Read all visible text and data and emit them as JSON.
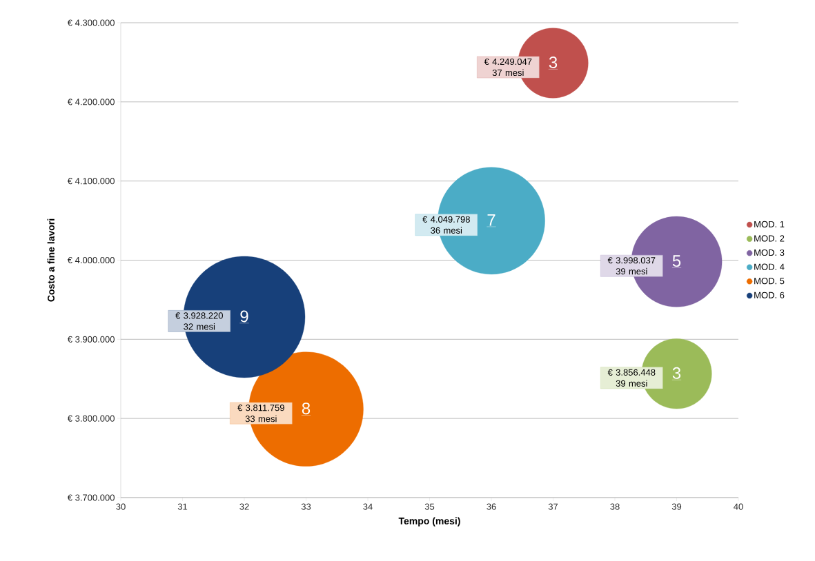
{
  "chart_data": {
    "type": "bubble",
    "xlabel": "Tempo (mesi)",
    "ylabel": "Costo a fine lavori",
    "xlim": [
      30,
      40
    ],
    "xticks": [
      30,
      31,
      32,
      33,
      34,
      35,
      36,
      37,
      38,
      39,
      40
    ],
    "ylim": [
      3700000,
      4300000
    ],
    "yticks": [
      {
        "value": 3700000,
        "label": "€ 3.700.000"
      },
      {
        "value": 3800000,
        "label": "€ 3.800.000"
      },
      {
        "value": 3900000,
        "label": "€ 3.900.000"
      },
      {
        "value": 4000000,
        "label": "€ 4.000.000"
      },
      {
        "value": 4100000,
        "label": "€ 4.100.000"
      },
      {
        "value": 4200000,
        "label": "€ 4.200.000"
      },
      {
        "value": 4300000,
        "label": "€ 4.300.000"
      }
    ],
    "grid": "y",
    "legend": "right",
    "series": [
      {
        "name": "MOD. 1",
        "color": "#c0504d",
        "x": [
          37
        ],
        "values": [
          4249047
        ],
        "sizes": [
          0.333
        ],
        "value_labels": [
          "€ 4.249.047 37 mesi"
        ]
      },
      {
        "name": "MOD. 2",
        "color": "#9bbb59",
        "x": [
          39
        ],
        "values": [
          3856448
        ],
        "sizes": [
          0.333
        ],
        "value_labels": [
          "€ 3.856.448 39 mesi"
        ]
      },
      {
        "name": "MOD. 3",
        "color": "#8064a2",
        "x": [
          39
        ],
        "values": [
          3998037
        ],
        "sizes": [
          0.556
        ],
        "value_labels": [
          "€ 3.998.037 39 mesi"
        ]
      },
      {
        "name": "MOD. 4",
        "color": "#4bacc6",
        "x": [
          36
        ],
        "values": [
          4049798
        ],
        "sizes": [
          0.778
        ],
        "value_labels": [
          "€ 4.049.798 36 mesi"
        ]
      },
      {
        "name": "MOD. 5",
        "color": "#ed6d00",
        "x": [
          33
        ],
        "values": [
          3811759
        ],
        "sizes": [
          0.889
        ],
        "value_labels": [
          "€ 3.811.759 33 mesi"
        ]
      },
      {
        "name": "MOD. 6",
        "color": "#17407a",
        "x": [
          32
        ],
        "values": [
          3928220
        ],
        "sizes": [
          1
        ],
        "value_labels": [
          "€ 3.928.220 32 mesi"
        ]
      }
    ],
    "annotations": [
      {
        "text": "3",
        "x": 37,
        "y": 4249047
      },
      {
        "text": "3",
        "x": 39,
        "y": 3856448
      },
      {
        "text": "5",
        "x": 39,
        "y": 3998037
      },
      {
        "text": "7",
        "x": 36,
        "y": 4049798
      },
      {
        "text": "8",
        "x": 33,
        "y": 3811759
      },
      {
        "text": "9",
        "x": 32,
        "y": 3928220
      }
    ]
  }
}
